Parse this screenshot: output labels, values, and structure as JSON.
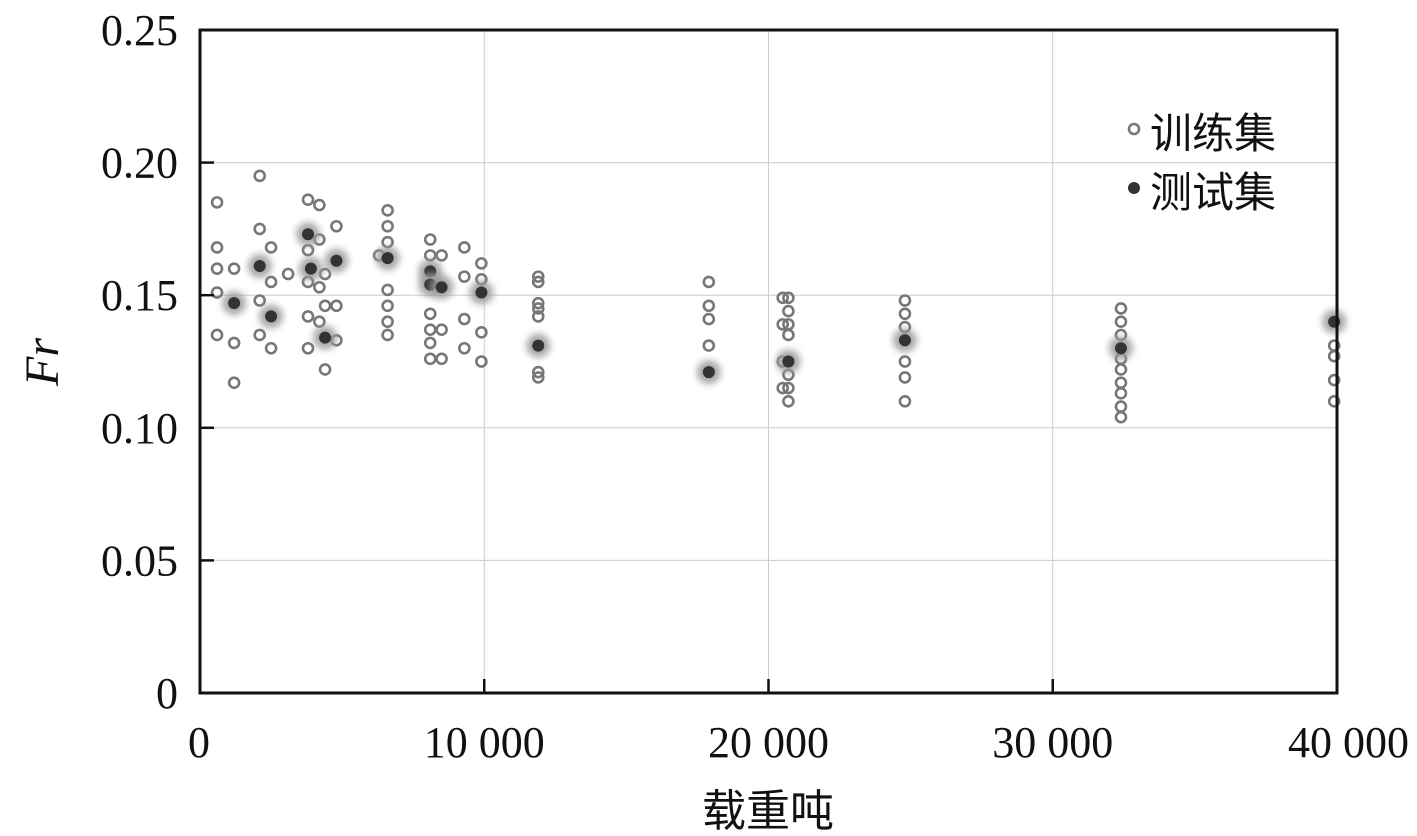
{
  "chart_data": {
    "type": "scatter",
    "xlabel": "载重吨",
    "ylabel": "Fr",
    "xlim": [
      0,
      40000
    ],
    "ylim": [
      0,
      0.25
    ],
    "xticks": [
      0,
      10000,
      20000,
      30000,
      40000
    ],
    "xtick_labels": [
      "0",
      "10 000",
      "20 000",
      "30 000",
      "40 000"
    ],
    "yticks": [
      0,
      0.05,
      0.1,
      0.15,
      0.2,
      0.25
    ],
    "ytick_labels": [
      "0",
      "0.05",
      "0.10",
      "0.15",
      "0.20",
      "0.25"
    ],
    "grid": true,
    "legend_position": "top-right",
    "series": [
      {
        "name": "训练集",
        "marker": "hollow-circle",
        "color": "#777777",
        "points": [
          [
            600,
            0.185
          ],
          [
            600,
            0.168
          ],
          [
            600,
            0.16
          ],
          [
            600,
            0.151
          ],
          [
            600,
            0.135
          ],
          [
            1200,
            0.16
          ],
          [
            1200,
            0.132
          ],
          [
            1200,
            0.117
          ],
          [
            2100,
            0.195
          ],
          [
            2100,
            0.175
          ],
          [
            2100,
            0.148
          ],
          [
            2100,
            0.135
          ],
          [
            2500,
            0.168
          ],
          [
            2500,
            0.155
          ],
          [
            2500,
            0.13
          ],
          [
            3100,
            0.158
          ],
          [
            3800,
            0.186
          ],
          [
            3800,
            0.167
          ],
          [
            3800,
            0.155
          ],
          [
            3800,
            0.142
          ],
          [
            3800,
            0.13
          ],
          [
            4200,
            0.184
          ],
          [
            4200,
            0.171
          ],
          [
            4200,
            0.153
          ],
          [
            4200,
            0.14
          ],
          [
            4400,
            0.158
          ],
          [
            4400,
            0.146
          ],
          [
            4400,
            0.122
          ],
          [
            4800,
            0.176
          ],
          [
            4800,
            0.146
          ],
          [
            4800,
            0.133
          ],
          [
            6300,
            0.165
          ],
          [
            6600,
            0.182
          ],
          [
            6600,
            0.176
          ],
          [
            6600,
            0.17
          ],
          [
            6600,
            0.152
          ],
          [
            6600,
            0.146
          ],
          [
            6600,
            0.14
          ],
          [
            6600,
            0.135
          ],
          [
            8100,
            0.171
          ],
          [
            8100,
            0.165
          ],
          [
            8100,
            0.143
          ],
          [
            8100,
            0.137
          ],
          [
            8100,
            0.132
          ],
          [
            8100,
            0.126
          ],
          [
            8500,
            0.165
          ],
          [
            8500,
            0.137
          ],
          [
            8500,
            0.126
          ],
          [
            9300,
            0.168
          ],
          [
            9300,
            0.157
          ],
          [
            9300,
            0.141
          ],
          [
            9300,
            0.13
          ],
          [
            9900,
            0.162
          ],
          [
            9900,
            0.156
          ],
          [
            9900,
            0.136
          ],
          [
            9900,
            0.125
          ],
          [
            11900,
            0.157
          ],
          [
            11900,
            0.155
          ],
          [
            11900,
            0.147
          ],
          [
            11900,
            0.145
          ],
          [
            11900,
            0.142
          ],
          [
            11900,
            0.121
          ],
          [
            11900,
            0.119
          ],
          [
            17900,
            0.155
          ],
          [
            17900,
            0.146
          ],
          [
            17900,
            0.141
          ],
          [
            17900,
            0.131
          ],
          [
            20500,
            0.149
          ],
          [
            20500,
            0.139
          ],
          [
            20500,
            0.125
          ],
          [
            20500,
            0.115
          ],
          [
            20700,
            0.149
          ],
          [
            20700,
            0.144
          ],
          [
            20700,
            0.139
          ],
          [
            20700,
            0.135
          ],
          [
            20700,
            0.12
          ],
          [
            20700,
            0.115
          ],
          [
            20700,
            0.11
          ],
          [
            24800,
            0.148
          ],
          [
            24800,
            0.143
          ],
          [
            24800,
            0.138
          ],
          [
            24800,
            0.125
          ],
          [
            24800,
            0.119
          ],
          [
            24800,
            0.11
          ],
          [
            32400,
            0.145
          ],
          [
            32400,
            0.14
          ],
          [
            32400,
            0.135
          ],
          [
            32400,
            0.126
          ],
          [
            32400,
            0.122
          ],
          [
            32400,
            0.117
          ],
          [
            32400,
            0.113
          ],
          [
            32400,
            0.108
          ],
          [
            32400,
            0.104
          ],
          [
            39900,
            0.131
          ],
          [
            39900,
            0.127
          ],
          [
            39900,
            0.118
          ],
          [
            39900,
            0.11
          ]
        ]
      },
      {
        "name": "测试集",
        "marker": "filled-circle",
        "color": "#333333",
        "points": [
          [
            1200,
            0.147
          ],
          [
            2100,
            0.161
          ],
          [
            2500,
            0.142
          ],
          [
            3800,
            0.173
          ],
          [
            3900,
            0.16
          ],
          [
            4400,
            0.134
          ],
          [
            4800,
            0.163
          ],
          [
            6600,
            0.164
          ],
          [
            8100,
            0.159
          ],
          [
            8100,
            0.154
          ],
          [
            8500,
            0.153
          ],
          [
            9900,
            0.151
          ],
          [
            11900,
            0.131
          ],
          [
            17900,
            0.121
          ],
          [
            20700,
            0.125
          ],
          [
            24800,
            0.133
          ],
          [
            32400,
            0.13
          ],
          [
            39900,
            0.14
          ]
        ]
      }
    ]
  }
}
